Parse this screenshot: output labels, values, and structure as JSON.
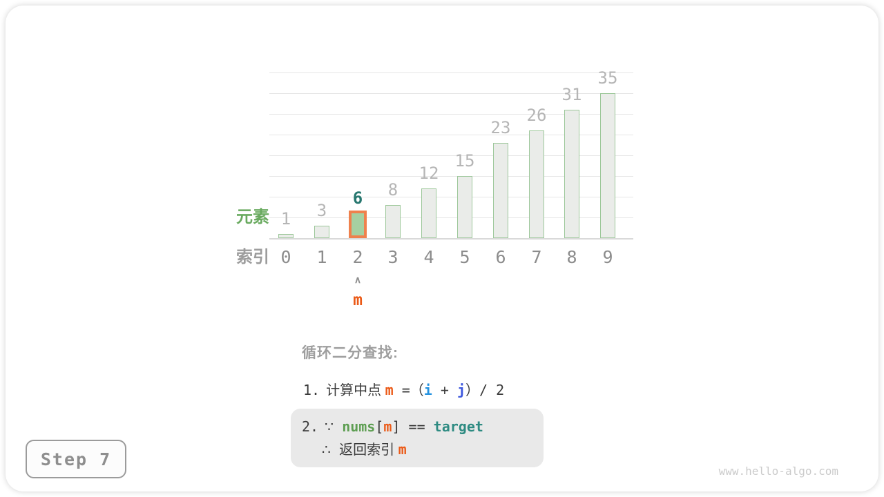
{
  "page": {
    "step_label": "Step 7",
    "watermark": "www.hello-algo.com"
  },
  "chart_data": {
    "type": "bar",
    "categories": [
      "0",
      "1",
      "2",
      "3",
      "4",
      "5",
      "6",
      "7",
      "8",
      "9"
    ],
    "values": [
      1,
      3,
      6,
      8,
      12,
      15,
      23,
      26,
      31,
      35
    ],
    "title": "",
    "xlabel": "索引",
    "ylabel": "元素",
    "ylim": [
      0,
      40
    ],
    "grid_step": 5,
    "grid": true,
    "highlight": {
      "index": 2,
      "value": 6,
      "pointer_label": "m",
      "pointer_caret": "∧"
    },
    "colors": {
      "bar_fill": "#eaece9",
      "bar_border": "#9cc799",
      "highlight_fill": "#a6d0a1",
      "highlight_border": "#ef814d",
      "value_label": "#b5b5b5",
      "highlight_value_label": "#27776f",
      "index_label": "#8c8c8c",
      "row_label_values": "#69aa5f",
      "row_label_indices": "#9c9c9c",
      "pointer": "#eb5a17",
      "grid": "#e6e6e6",
      "axis": "#d9d9d9"
    }
  },
  "explanation": {
    "title": "循环二分查找:",
    "line1": [
      {
        "t": "1.",
        "c": "num"
      },
      {
        "t": "计算中点 ",
        "c": "cjk"
      },
      {
        "t": "m",
        "c": "m"
      },
      {
        "t": " =",
        "c": "plain"
      },
      {
        "t": "（",
        "c": "cjk"
      },
      {
        "t": "i",
        "c": "i"
      },
      {
        "t": " + ",
        "c": "plain"
      },
      {
        "t": "j",
        "c": "j"
      },
      {
        "t": "）",
        "c": "cjk"
      },
      {
        "t": "/ 2",
        "c": "plain"
      }
    ],
    "box2_line1": [
      {
        "t": "2.",
        "c": "num"
      },
      {
        "t": "∵ ",
        "c": "sym"
      },
      {
        "t": "nums",
        "c": "nums"
      },
      {
        "t": "[",
        "c": "plain"
      },
      {
        "t": "m",
        "c": "m"
      },
      {
        "t": "]",
        "c": "plain"
      },
      {
        "t": " == ",
        "c": "plain"
      },
      {
        "t": "target",
        "c": "target"
      }
    ],
    "box2_line2": [
      {
        "t": "∴ ",
        "c": "sym"
      },
      {
        "t": "返回索引 ",
        "c": "cjk"
      },
      {
        "t": "m",
        "c": "m"
      }
    ]
  },
  "token_colors": {
    "m": "#eb5a17",
    "i": "#2492e0",
    "j": "#3e58de",
    "nums": "#5d9e52",
    "target": "#2e8b82"
  }
}
